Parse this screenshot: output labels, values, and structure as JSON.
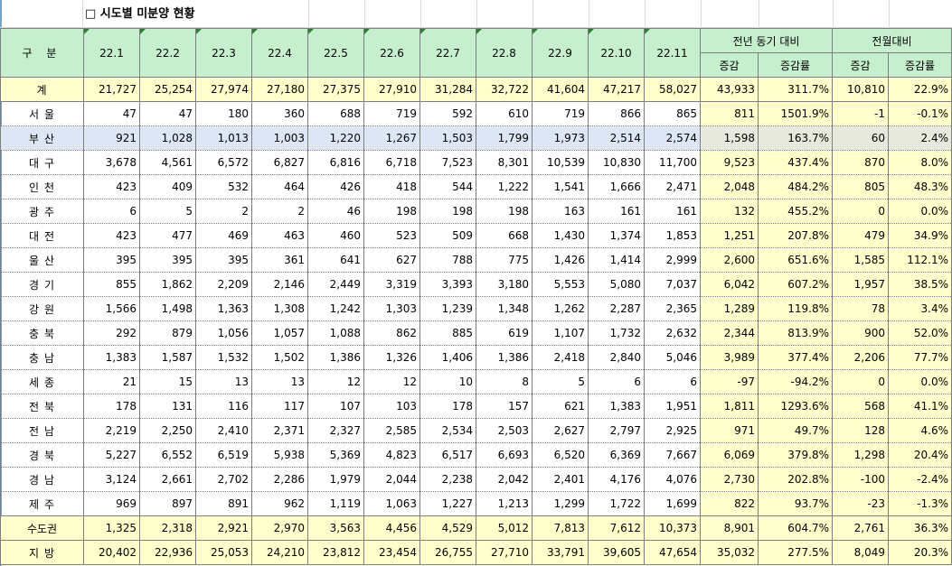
{
  "title": "□ 시도별 미분양 현황",
  "header": {
    "region": "구 분",
    "months": [
      "22.1",
      "22.2",
      "22.3",
      "22.4",
      "22.5",
      "22.6",
      "22.7",
      "22.8",
      "22.9",
      "22.10",
      "22.11"
    ],
    "yoy_group": "전년 동기 대비",
    "mom_group": "전월대비",
    "sub": [
      "증감",
      "증감률",
      "증감",
      "증감률"
    ]
  },
  "rows": [
    {
      "label": "계",
      "vals": [
        "21,727",
        "25,254",
        "27,974",
        "27,180",
        "27,375",
        "27,910",
        "31,284",
        "32,722",
        "41,604",
        "47,217",
        "58,027"
      ],
      "yoy": [
        "43,933",
        "311.7%"
      ],
      "mom": [
        "10,810",
        "22.9%"
      ]
    },
    {
      "label": "서울",
      "vals": [
        "47",
        "47",
        "180",
        "360",
        "688",
        "719",
        "592",
        "610",
        "719",
        "866",
        "865"
      ],
      "yoy": [
        "811",
        "1501.9%"
      ],
      "mom": [
        "-1",
        "-0.1%"
      ]
    },
    {
      "label": "부산",
      "vals": [
        "921",
        "1,028",
        "1,013",
        "1,003",
        "1,220",
        "1,267",
        "1,503",
        "1,799",
        "1,973",
        "2,514",
        "2,574"
      ],
      "yoy": [
        "1,598",
        "163.7%"
      ],
      "mom": [
        "60",
        "2.4%"
      ]
    },
    {
      "label": "대구",
      "vals": [
        "3,678",
        "4,561",
        "6,572",
        "6,827",
        "6,816",
        "6,718",
        "7,523",
        "8,301",
        "10,539",
        "10,830",
        "11,700"
      ],
      "yoy": [
        "9,523",
        "437.4%"
      ],
      "mom": [
        "870",
        "8.0%"
      ]
    },
    {
      "label": "인천",
      "vals": [
        "423",
        "409",
        "532",
        "464",
        "426",
        "418",
        "544",
        "1,222",
        "1,541",
        "1,666",
        "2,471"
      ],
      "yoy": [
        "2,048",
        "484.2%"
      ],
      "mom": [
        "805",
        "48.3%"
      ]
    },
    {
      "label": "광주",
      "vals": [
        "6",
        "5",
        "2",
        "2",
        "46",
        "198",
        "198",
        "198",
        "163",
        "161",
        "161"
      ],
      "yoy": [
        "132",
        "455.2%"
      ],
      "mom": [
        "0",
        "0.0%"
      ]
    },
    {
      "label": "대전",
      "vals": [
        "423",
        "477",
        "469",
        "463",
        "460",
        "523",
        "509",
        "668",
        "1,430",
        "1,374",
        "1,853"
      ],
      "yoy": [
        "1,251",
        "207.8%"
      ],
      "mom": [
        "479",
        "34.9%"
      ]
    },
    {
      "label": "울산",
      "vals": [
        "395",
        "395",
        "395",
        "361",
        "641",
        "627",
        "788",
        "775",
        "1,426",
        "1,414",
        "2,999"
      ],
      "yoy": [
        "2,600",
        "651.6%"
      ],
      "mom": [
        "1,585",
        "112.1%"
      ]
    },
    {
      "label": "경기",
      "vals": [
        "855",
        "1,862",
        "2,209",
        "2,146",
        "2,449",
        "3,319",
        "3,393",
        "3,180",
        "5,553",
        "5,080",
        "7,037"
      ],
      "yoy": [
        "6,042",
        "607.2%"
      ],
      "mom": [
        "1,957",
        "38.5%"
      ]
    },
    {
      "label": "강원",
      "vals": [
        "1,566",
        "1,498",
        "1,363",
        "1,308",
        "1,242",
        "1,303",
        "1,239",
        "1,348",
        "1,262",
        "2,287",
        "2,365"
      ],
      "yoy": [
        "1,289",
        "119.8%"
      ],
      "mom": [
        "78",
        "3.4%"
      ]
    },
    {
      "label": "충북",
      "vals": [
        "292",
        "879",
        "1,056",
        "1,057",
        "1,088",
        "862",
        "885",
        "619",
        "1,107",
        "1,732",
        "2,632"
      ],
      "yoy": [
        "2,344",
        "813.9%"
      ],
      "mom": [
        "900",
        "52.0%"
      ]
    },
    {
      "label": "충남",
      "vals": [
        "1,383",
        "1,587",
        "1,532",
        "1,502",
        "1,386",
        "1,326",
        "1,406",
        "1,386",
        "2,418",
        "2,840",
        "5,046"
      ],
      "yoy": [
        "3,989",
        "377.4%"
      ],
      "mom": [
        "2,206",
        "77.7%"
      ]
    },
    {
      "label": "세종",
      "vals": [
        "21",
        "15",
        "13",
        "13",
        "12",
        "12",
        "10",
        "8",
        "5",
        "6",
        "6"
      ],
      "yoy": [
        "-97",
        "-94.2%"
      ],
      "mom": [
        "0",
        "0.0%"
      ]
    },
    {
      "label": "전북",
      "vals": [
        "178",
        "131",
        "116",
        "117",
        "107",
        "103",
        "178",
        "157",
        "621",
        "1,383",
        "1,951"
      ],
      "yoy": [
        "1,811",
        "1293.6%"
      ],
      "mom": [
        "568",
        "41.1%"
      ]
    },
    {
      "label": "전남",
      "vals": [
        "2,219",
        "2,250",
        "2,410",
        "2,371",
        "2,327",
        "2,585",
        "2,534",
        "2,503",
        "2,627",
        "2,797",
        "2,925"
      ],
      "yoy": [
        "971",
        "49.7%"
      ],
      "mom": [
        "128",
        "4.6%"
      ]
    },
    {
      "label": "경북",
      "vals": [
        "5,227",
        "6,552",
        "6,519",
        "5,938",
        "5,369",
        "4,823",
        "6,517",
        "6,693",
        "6,520",
        "6,369",
        "7,667"
      ],
      "yoy": [
        "6,069",
        "379.8%"
      ],
      "mom": [
        "1,298",
        "20.4%"
      ]
    },
    {
      "label": "경남",
      "vals": [
        "3,124",
        "2,661",
        "2,702",
        "2,286",
        "1,979",
        "2,044",
        "2,238",
        "2,042",
        "2,401",
        "4,176",
        "4,076"
      ],
      "yoy": [
        "2,730",
        "202.8%"
      ],
      "mom": [
        "-100",
        "-2.4%"
      ]
    },
    {
      "label": "제주",
      "vals": [
        "969",
        "897",
        "891",
        "962",
        "1,119",
        "1,063",
        "1,227",
        "1,213",
        "1,299",
        "1,722",
        "1,699"
      ],
      "yoy": [
        "822",
        "93.7%"
      ],
      "mom": [
        "-23",
        "-1.3%"
      ]
    },
    {
      "label": "수도권",
      "vals": [
        "1,325",
        "2,318",
        "2,921",
        "2,970",
        "3,563",
        "4,456",
        "4,529",
        "5,012",
        "7,813",
        "7,612",
        "10,373"
      ],
      "yoy": [
        "8,901",
        "604.7%"
      ],
      "mom": [
        "2,761",
        "36.3%"
      ]
    },
    {
      "label": "지방",
      "vals": [
        "20,402",
        "22,936",
        "25,053",
        "24,210",
        "23,812",
        "23,454",
        "26,755",
        "27,710",
        "33,791",
        "39,605",
        "47,654"
      ],
      "yoy": [
        "35,032",
        "277.5%"
      ],
      "mom": [
        "8,049",
        "20.3%"
      ]
    }
  ],
  "colors": {
    "header_bg": "#c6efce",
    "highlight_bg": "#ffffcc",
    "selected_row_bg": "#dde6f5",
    "border": "#7f7f7f"
  }
}
